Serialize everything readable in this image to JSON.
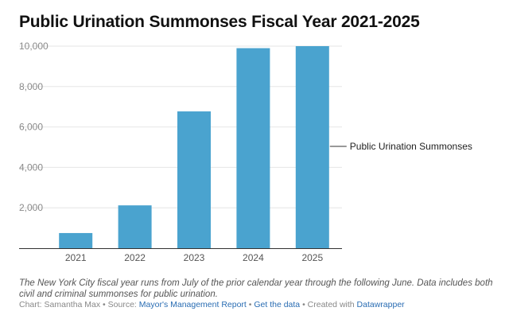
{
  "chart_data": {
    "type": "bar",
    "title": "Public Urination Summonses Fiscal Year 2021-2025",
    "categories": [
      "2021",
      "2022",
      "2023",
      "2024",
      "2025"
    ],
    "series": [
      {
        "name": "Public Urination Summonses",
        "values": [
          750,
          2120,
          6770,
          9900,
          10000
        ]
      }
    ],
    "ylim": [
      0,
      10000
    ],
    "yticks": [
      0,
      2000,
      4000,
      6000,
      8000,
      10000
    ],
    "ytick_labels": [
      "",
      "2,000",
      "4,000",
      "6,000",
      "8,000",
      "10,000"
    ],
    "grid": true,
    "xlabel": "",
    "ylabel": ""
  },
  "colors": {
    "bar": "#4aa3cf",
    "grid": "#e6e6e6",
    "axis": "#333333"
  },
  "notes": "The New York City fiscal year runs from July of the prior calendar year through the following June. Data includes both civil and criminal summonses for public urination.",
  "footer": {
    "chart_prefix": "Chart: ",
    "author": "Samantha Max",
    "separator": " • ",
    "source_prefix": "Source: ",
    "source_link": "Mayor's Management Report",
    "get_data_link": "Get the data",
    "created_prefix": "Created with ",
    "tool_link": "Datawrapper"
  }
}
